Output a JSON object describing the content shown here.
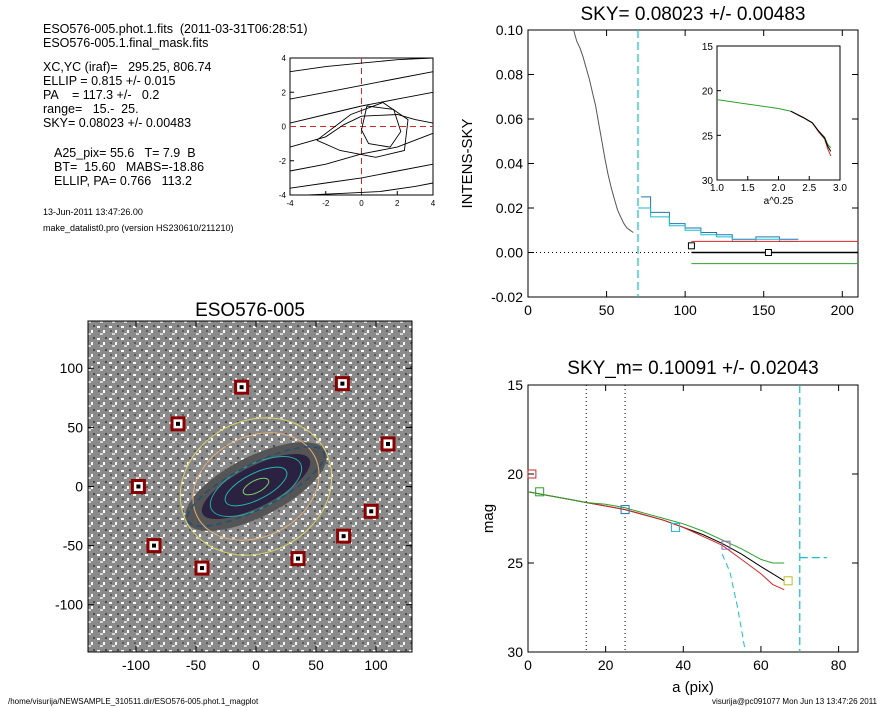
{
  "header": {
    "line1": "ESO576-005.phot.1.fits  (2011-03-31T06:28:51)",
    "line2": "ESO576-005.1.final_mask.fits",
    "lines": [
      "XC,YC (iraf)=   295.25, 806.74",
      "ELLIP = 0.815 +/- 0.015",
      "PA    = 117.3 +/-   0.2",
      "range=   15.-  25.",
      "SKY= 0.08023 +/- 0.00483"
    ],
    "lines2": [
      "A25_pix= 55.6   T= 7.9  B",
      "BT=  15.60   MABS=-18.86",
      "ELLIP, PA= 0.766   113.2"
    ],
    "date": "13-Jun-2011 13:47:26.00",
    "program": "make_datalist0.pro (version HS230610/211210)"
  },
  "footer": {
    "left": "/home/visurija/NEWSAMPLE_310511.dir/ESO576-005.phot.1_magplot",
    "right": "visurija@pc091077  Mon Jun 13 13:47:26 2011"
  },
  "chart_data": [
    {
      "id": "contour",
      "type": "contour",
      "xlim": [
        -4,
        4
      ],
      "ylim": [
        -4,
        4
      ],
      "xticks": [
        "-4",
        "-2",
        "0",
        "2",
        "4"
      ],
      "yticks": [
        "4",
        "2",
        "0",
        "-2",
        "-4"
      ],
      "colors": {
        "axis": "#000000",
        "crosshair": "#d62728"
      }
    },
    {
      "id": "sky",
      "type": "line",
      "title": "SKY= 0.08023 +/- 0.00483",
      "xlabel": "",
      "ylabel": "INTENS-SKY",
      "xlim": [
        0,
        210
      ],
      "ylim": [
        -0.02,
        0.1
      ],
      "xticks": [
        "0",
        "50",
        "100",
        "150",
        "200"
      ],
      "yticks": [
        "0.10",
        "0.08",
        "0.06",
        "0.04",
        "0.02",
        "0.00",
        "-0.02"
      ],
      "vline_x": 70,
      "series": [
        {
          "color": "#555555",
          "x": [
            29,
            31,
            33,
            35,
            37,
            39,
            41,
            43,
            45,
            47,
            49,
            51,
            53,
            55,
            57,
            59,
            61,
            63,
            65,
            67
          ],
          "y": [
            0.1,
            0.095,
            0.092,
            0.088,
            0.083,
            0.078,
            0.072,
            0.066,
            0.058,
            0.05,
            0.042,
            0.035,
            0.029,
            0.024,
            0.019,
            0.016,
            0.013,
            0.011,
            0.01,
            0.009
          ]
        },
        {
          "color": "#1f77b4",
          "x": [
            72,
            78,
            78,
            90,
            90,
            100,
            100,
            110,
            110,
            120,
            120,
            130,
            130,
            145,
            145,
            160,
            160,
            172
          ],
          "y": [
            0.025,
            0.025,
            0.018,
            0.018,
            0.013,
            0.013,
            0.011,
            0.011,
            0.009,
            0.009,
            0.008,
            0.008,
            0.006,
            0.006,
            0.007,
            0.007,
            0.006,
            0.006
          ]
        },
        {
          "color": "#17becf",
          "x": [
            70,
            78,
            78,
            90,
            90,
            100,
            100,
            110,
            110,
            120,
            120,
            130,
            130,
            145,
            145,
            160,
            160,
            172
          ],
          "y": [
            0.02,
            0.02,
            0.016,
            0.016,
            0.012,
            0.012,
            0.01,
            0.01,
            0.008,
            0.008,
            0.007,
            0.007,
            0.005,
            0.005,
            0.006,
            0.006,
            0.005,
            0.005
          ]
        },
        {
          "color": "#d62728",
          "x": [
            104,
            210
          ],
          "y": [
            0.005,
            0.005
          ]
        },
        {
          "color": "#2ca02c",
          "x": [
            104,
            210
          ],
          "y": [
            -0.005,
            -0.005
          ]
        },
        {
          "color": "#000000",
          "x": [
            104,
            210
          ],
          "y": [
            0,
            0
          ],
          "width": 1.6
        }
      ],
      "markers": [
        {
          "x": 104,
          "y": 0.003
        },
        {
          "x": 153,
          "y": 0
        }
      ],
      "inset": {
        "xlabel": "a^0.25",
        "xlim": [
          1.0,
          3.0
        ],
        "ylim": [
          15,
          30
        ],
        "xticks": [
          "1.0",
          "1.5",
          "2.0",
          "2.5",
          "3.0"
        ],
        "yticks": [
          "15",
          "20",
          "25",
          "30"
        ],
        "series": [
          {
            "color": "#2ca02c",
            "x": [
              1.0,
              1.5,
              2.0,
              2.2,
              2.4,
              2.55,
              2.65,
              2.75,
              2.8,
              2.85
            ],
            "y": [
              21,
              21.5,
              22,
              22.3,
              23,
              23.6,
              24.5,
              25.2,
              26,
              26.4
            ]
          },
          {
            "color": "#d62728",
            "x": [
              2.2,
              2.4,
              2.55,
              2.65,
              2.75,
              2.8,
              2.85
            ],
            "y": [
              22.3,
              23,
              23.6,
              24.6,
              25.4,
              26.5,
              27.3
            ]
          },
          {
            "color": "#000000",
            "x": [
              2.2,
              2.4,
              2.55,
              2.65,
              2.75,
              2.8,
              2.85
            ],
            "y": [
              22.3,
              23,
              23.6,
              24.5,
              25.3,
              26.2,
              26.8
            ]
          }
        ]
      }
    },
    {
      "id": "galaxy",
      "type": "image",
      "title": "ESO576-005",
      "xlim": [
        -140,
        130
      ],
      "ylim": [
        -140,
        140
      ],
      "xticks": [
        "-100",
        "-50",
        "0",
        "50",
        "100"
      ],
      "yticks": [
        "100",
        "50",
        "0",
        "-50",
        "-100"
      ],
      "stars": [
        [
          -12,
          84
        ],
        [
          72,
          87
        ],
        [
          -65,
          53
        ],
        [
          110,
          36
        ],
        [
          -98,
          0
        ],
        [
          96,
          -21
        ],
        [
          -85,
          -50
        ],
        [
          73,
          -42
        ],
        [
          35,
          -61
        ],
        [
          -45,
          -69
        ]
      ]
    },
    {
      "id": "mag",
      "type": "line",
      "title": "SKY_m=  0.10091 +/- 0.02043",
      "xlabel": "a (pix)",
      "ylabel": "mag",
      "xlim": [
        0,
        85
      ],
      "ylim": [
        15,
        30
      ],
      "xticks": [
        "0",
        "20",
        "40",
        "60",
        "80"
      ],
      "yticks": [
        "15",
        "20",
        "25",
        "30"
      ],
      "dotted_x": [
        15,
        25
      ],
      "cyan_vline_x": 70,
      "series": [
        {
          "color": "#000000",
          "x": [
            0,
            5,
            10,
            15,
            20,
            25,
            30,
            35,
            40,
            45,
            50,
            55,
            60,
            63,
            66
          ],
          "y": [
            21,
            21.2,
            21.4,
            21.6,
            21.8,
            22,
            22.3,
            22.6,
            23,
            23.4,
            23.9,
            24.5,
            25.2,
            25.6,
            26
          ]
        },
        {
          "color": "#d62728",
          "x": [
            0,
            5,
            10,
            15,
            20,
            25,
            30,
            35,
            40,
            45,
            50,
            55,
            60,
            63,
            66
          ],
          "y": [
            21,
            21.2,
            21.4,
            21.6,
            21.8,
            22,
            22.3,
            22.6,
            23,
            23.5,
            24,
            24.8,
            25.6,
            26.2,
            26.5
          ]
        },
        {
          "color": "#2ca02c",
          "x": [
            0,
            5,
            10,
            15,
            20,
            25,
            30,
            35,
            40,
            45,
            50,
            55,
            60,
            63,
            66
          ],
          "y": [
            21,
            21.2,
            21.4,
            21.6,
            21.7,
            21.9,
            22.2,
            22.5,
            22.8,
            23.2,
            23.7,
            24.2,
            24.8,
            25,
            25
          ]
        },
        {
          "color": "#17becf",
          "x": [
            50,
            52,
            54,
            56
          ],
          "y": [
            24.5,
            25.5,
            27.5,
            30
          ],
          "dash": true
        }
      ],
      "boxes": [
        {
          "x": 1,
          "y": 20,
          "color": "#d62728"
        },
        {
          "x": 3,
          "y": 21,
          "color": "#2ca02c"
        },
        {
          "x": 25,
          "y": 22,
          "color": "#1f77b4"
        },
        {
          "x": 38,
          "y": 23,
          "color": "#17becf"
        },
        {
          "x": 51,
          "y": 24,
          "color": "#9467bd"
        },
        {
          "x": 67,
          "y": 26,
          "color": "#bcbd22"
        }
      ]
    }
  ]
}
